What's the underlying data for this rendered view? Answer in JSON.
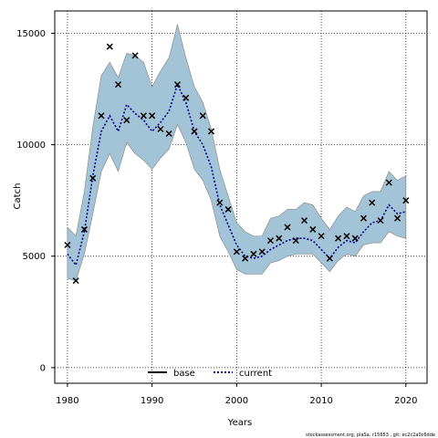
{
  "chart_data": {
    "type": "line",
    "title": "",
    "xlabel": "Years",
    "ylabel": "Catch",
    "xlim": [
      1978.5,
      2022.5
    ],
    "ylim": [
      -700,
      16000
    ],
    "x_ticks": [
      1980,
      1990,
      2000,
      2010,
      2020
    ],
    "y_ticks": [
      0,
      5000,
      10000,
      15000
    ],
    "grid": true,
    "legend": {
      "placement": "bottom-center",
      "entries": [
        "base",
        "current"
      ]
    },
    "footnote": "stockassessment.org, plaSa, r15653 , git: ec2c2a0c6dde",
    "colors": {
      "band": "#a3c4d6",
      "band_edge": "#808080",
      "current": "#00008b",
      "base": "#000000",
      "observed": "#000000"
    },
    "x": [
      1980,
      1981,
      1982,
      1983,
      1984,
      1985,
      1986,
      1987,
      1988,
      1989,
      1990,
      1991,
      1992,
      1993,
      1994,
      1995,
      1996,
      1997,
      1998,
      1999,
      2000,
      2001,
      2002,
      2003,
      2004,
      2005,
      2006,
      2007,
      2008,
      2009,
      2010,
      2011,
      2012,
      2013,
      2014,
      2015,
      2016,
      2017,
      2018,
      2019,
      2020
    ],
    "series": [
      {
        "name": "current",
        "style": "dotted",
        "values": [
          5100,
          4600,
          6100,
          8600,
          10600,
          11300,
          10600,
          11800,
          11400,
          11100,
          10600,
          11000,
          11500,
          12700,
          11900,
          10600,
          10000,
          9000,
          7300,
          6400,
          5500,
          5000,
          4900,
          5000,
          5300,
          5500,
          5700,
          5800,
          5800,
          5700,
          5300,
          4900,
          5400,
          5700,
          5600,
          6100,
          6500,
          6600,
          7300,
          6900,
          7000
        ]
      }
    ],
    "band": {
      "name": "confidence interval",
      "upper": [
        6300,
        5900,
        7900,
        10800,
        13100,
        13700,
        13000,
        14100,
        14000,
        13700,
        12600,
        13300,
        13900,
        15400,
        13900,
        12600,
        11900,
        10700,
        8900,
        7700,
        6500,
        6100,
        5900,
        5900,
        6700,
        6800,
        7100,
        7100,
        7400,
        7300,
        6700,
        6200,
        6800,
        7200,
        7000,
        7700,
        7900,
        7900,
        8800,
        8400,
        8600
      ],
      "lower": [
        4000,
        3900,
        5100,
        6900,
        8800,
        9600,
        8800,
        10100,
        9600,
        9300,
        8900,
        9400,
        9800,
        10900,
        10100,
        8900,
        8400,
        7500,
        5900,
        5200,
        4400,
        4200,
        4200,
        4200,
        4700,
        4800,
        5000,
        5100,
        5100,
        5100,
        4700,
        4300,
        4800,
        5100,
        5000,
        5500,
        5600,
        5600,
        6100,
        5900,
        5800
      ]
    },
    "observed": {
      "marker": "x",
      "values": [
        5500,
        3900,
        6200,
        8500,
        11300,
        14400,
        12700,
        11100,
        14000,
        11300,
        11300,
        10700,
        10500,
        12700,
        12100,
        10600,
        11300,
        10600,
        7400,
        7100,
        5200,
        4900,
        5100,
        5200,
        5700,
        5800,
        6300,
        5700,
        6600,
        6200,
        5900,
        4900,
        5800,
        5900,
        5800,
        6700,
        7400,
        6600,
        8300,
        6700,
        7500
      ]
    }
  }
}
